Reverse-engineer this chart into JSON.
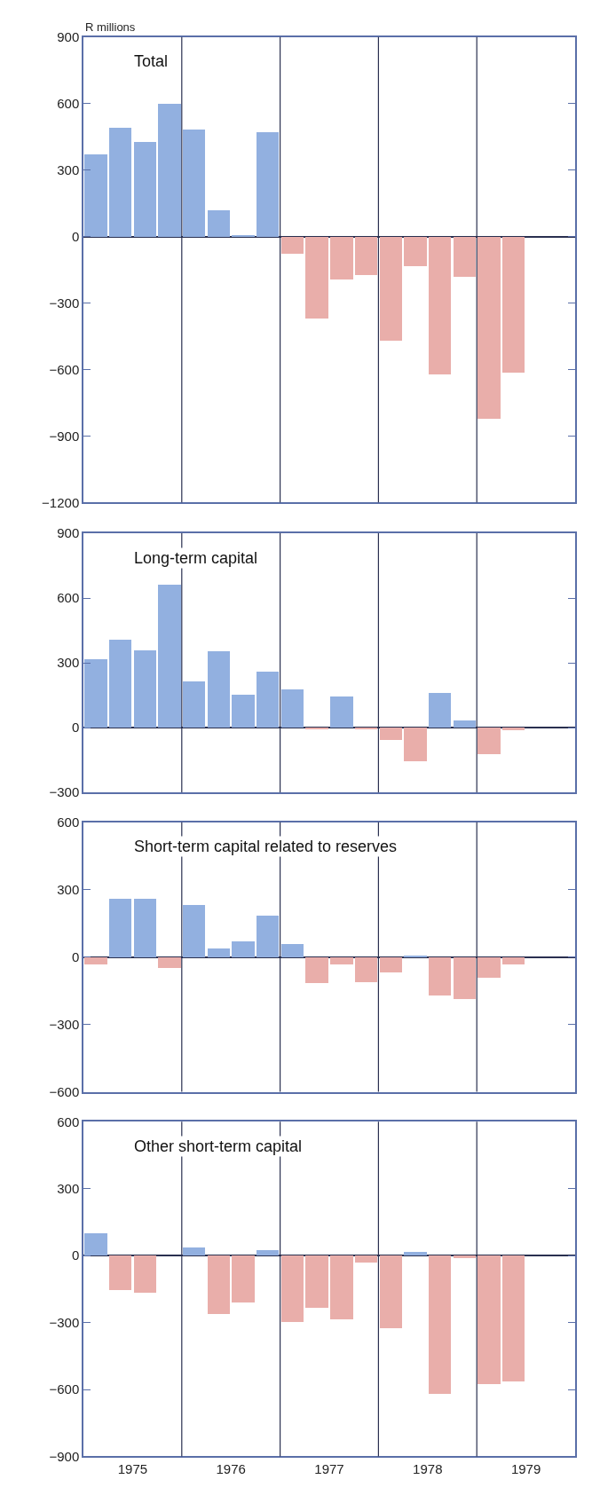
{
  "chart_data": [
    {
      "type": "bar",
      "title": "Total",
      "ylabel": "R millions",
      "x": [
        1975.125,
        1975.375,
        1975.625,
        1975.875,
        1976.125,
        1976.375,
        1976.625,
        1976.875,
        1977.125,
        1977.375,
        1977.625,
        1977.875,
        1978.125,
        1978.375,
        1978.625,
        1978.875,
        1979.125,
        1979.375
      ],
      "values": [
        372,
        492,
        429,
        598,
        482,
        118,
        5,
        472,
        -76,
        -370,
        -191,
        -172,
        -470,
        -134,
        -622,
        -181,
        -820,
        -612
      ],
      "colors": [
        "#92b0e0",
        "#92b0e0",
        "#92b0e0",
        "#92b0e0",
        "#92b0e0",
        "#92b0e0",
        "#92b0e0",
        "#92b0e0",
        "#e9aeaa",
        "#e9aeaa",
        "#e9aeaa",
        "#e9aeaa",
        "#e9aeaa",
        "#e9aeaa",
        "#e9aeaa",
        "#e9aeaa",
        "#e9aeaa",
        "#e9aeaa"
      ],
      "xlim": [
        1975,
        1980
      ],
      "ylim": [
        -1200,
        900
      ],
      "yticks": [
        -1200,
        -900,
        -600,
        -300,
        0,
        300,
        600,
        900
      ],
      "tick_labels": "y",
      "ref_lines": [
        {
          "axis": "x",
          "value": 1976,
          "color": "#2a3050"
        },
        {
          "axis": "x",
          "value": 1977,
          "color": "#2a3050"
        },
        {
          "axis": "x",
          "value": 1978,
          "color": "#2a3050"
        },
        {
          "axis": "x",
          "value": 1979,
          "color": "#2a3050"
        }
      ]
    },
    {
      "type": "bar",
      "title": "Long-term capital",
      "x": [
        1975.125,
        1975.375,
        1975.625,
        1975.875,
        1976.125,
        1976.375,
        1976.625,
        1976.875,
        1977.125,
        1977.375,
        1977.625,
        1977.875,
        1978.125,
        1978.375,
        1978.625,
        1978.875,
        1979.125,
        1979.375
      ],
      "values": [
        317,
        405,
        359,
        661,
        215,
        353,
        153,
        261,
        175,
        -5,
        142,
        -5,
        -56,
        -156,
        159,
        34,
        -124,
        -14
      ],
      "colors": [
        "#92b0e0",
        "#92b0e0",
        "#92b0e0",
        "#92b0e0",
        "#92b0e0",
        "#92b0e0",
        "#92b0e0",
        "#92b0e0",
        "#92b0e0",
        "#e9aeaa",
        "#92b0e0",
        "#e9aeaa",
        "#e9aeaa",
        "#e9aeaa",
        "#92b0e0",
        "#92b0e0",
        "#e9aeaa",
        "#e9aeaa"
      ],
      "xlim": [
        1975,
        1980
      ],
      "ylim": [
        -300,
        900
      ],
      "yticks": [
        -300,
        0,
        300,
        600,
        900
      ],
      "tick_labels": "y",
      "ref_lines": [
        {
          "axis": "x",
          "value": 1976,
          "color": "#2a3050"
        },
        {
          "axis": "x",
          "value": 1977,
          "color": "#2a3050"
        },
        {
          "axis": "x",
          "value": 1978,
          "color": "#2a3050"
        },
        {
          "axis": "x",
          "value": 1979,
          "color": "#2a3050"
        }
      ]
    },
    {
      "type": "bar",
      "title": "Short-term capital related to reserves",
      "x": [
        1975.125,
        1975.375,
        1975.625,
        1975.875,
        1976.125,
        1976.375,
        1976.625,
        1976.875,
        1977.125,
        1977.375,
        1977.625,
        1977.875,
        1978.125,
        1978.375,
        1978.625,
        1978.875,
        1979.125,
        1979.375
      ],
      "values": [
        -31,
        259,
        259,
        -47,
        232,
        41,
        71,
        186,
        58,
        -115,
        -31,
        -110,
        -68,
        7,
        -169,
        -186,
        -90,
        -31
      ],
      "colors": [
        "#e9aeaa",
        "#92b0e0",
        "#92b0e0",
        "#e9aeaa",
        "#92b0e0",
        "#92b0e0",
        "#92b0e0",
        "#92b0e0",
        "#92b0e0",
        "#e9aeaa",
        "#e9aeaa",
        "#e9aeaa",
        "#e9aeaa",
        "#92b0e0",
        "#e9aeaa",
        "#e9aeaa",
        "#e9aeaa",
        "#e9aeaa"
      ],
      "xlim": [
        1975,
        1980
      ],
      "ylim": [
        -600,
        600
      ],
      "yticks": [
        -600,
        -300,
        0,
        300,
        600
      ],
      "tick_labels": "y",
      "ref_lines": [
        {
          "axis": "x",
          "value": 1976,
          "color": "#2a3050"
        },
        {
          "axis": "x",
          "value": 1977,
          "color": "#2a3050"
        },
        {
          "axis": "x",
          "value": 1978,
          "color": "#2a3050"
        },
        {
          "axis": "x",
          "value": 1979,
          "color": "#2a3050"
        }
      ]
    },
    {
      "type": "bar",
      "title": "Other short-term capital",
      "x": [
        1975.125,
        1975.375,
        1975.625,
        1975.875,
        1976.125,
        1976.375,
        1976.625,
        1976.875,
        1977.125,
        1977.375,
        1977.625,
        1977.875,
        1978.125,
        1978.375,
        1978.625,
        1978.875,
        1979.125,
        1979.375
      ],
      "values": [
        97,
        -156,
        -168,
        0,
        34,
        -261,
        -210,
        22,
        -300,
        -236,
        -286,
        -31,
        -325,
        17,
        -620,
        -12,
        -576,
        -564
      ],
      "colors": [
        "#92b0e0",
        "#e9aeaa",
        "#e9aeaa",
        "#e9aeaa",
        "#92b0e0",
        "#e9aeaa",
        "#e9aeaa",
        "#92b0e0",
        "#e9aeaa",
        "#e9aeaa",
        "#e9aeaa",
        "#e9aeaa",
        "#e9aeaa",
        "#92b0e0",
        "#e9aeaa",
        "#e9aeaa",
        "#e9aeaa",
        "#e9aeaa"
      ],
      "xlim": [
        1975,
        1980
      ],
      "xticks": [
        {
          "value": 1975.5,
          "label": "1975"
        },
        {
          "value": 1976.5,
          "label": "1976"
        },
        {
          "value": 1977.5,
          "label": "1977"
        },
        {
          "value": 1978.5,
          "label": "1978"
        },
        {
          "value": 1979.5,
          "label": "1979"
        }
      ],
      "ylim": [
        -900,
        600
      ],
      "yticks": [
        -900,
        -600,
        -300,
        0,
        300,
        600
      ],
      "ref_lines": [
        {
          "axis": "x",
          "value": 1976,
          "color": "#2a3050"
        },
        {
          "axis": "x",
          "value": 1977,
          "color": "#2a3050"
        },
        {
          "axis": "x",
          "value": 1978,
          "color": "#2a3050"
        },
        {
          "axis": "x",
          "value": 1979,
          "color": "#2a3050"
        }
      ]
    }
  ]
}
